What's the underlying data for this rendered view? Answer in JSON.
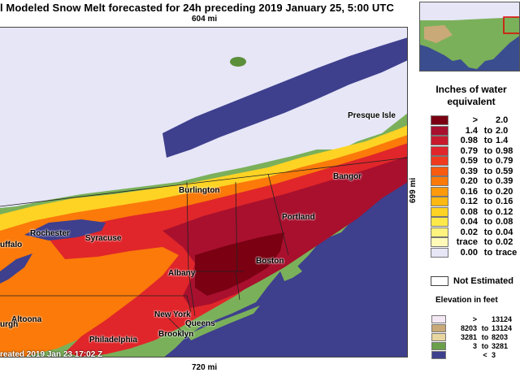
{
  "header": {
    "title": "l Modeled Snow Melt forecasted for 24h preceding 2019 January 25, 5:00 UTC",
    "distance_top": "604 mi",
    "distance_bottom": "720 mi",
    "distance_right": "699 mi",
    "timestamp": "reated 2019 Jan 23 17:02 Z"
  },
  "cities": [
    {
      "name": "Presque Isle"
    },
    {
      "name": "Bangor"
    },
    {
      "name": "Burlington"
    },
    {
      "name": "Portland"
    },
    {
      "name": "Rochester"
    },
    {
      "name": "Syracuse"
    },
    {
      "name": "uffalo"
    },
    {
      "name": "Albany"
    },
    {
      "name": "Boston"
    },
    {
      "name": "Altoona"
    },
    {
      "name": "New York"
    },
    {
      "name": "Queens"
    },
    {
      "name": "Brooklyn"
    },
    {
      "name": "Philadelphia"
    },
    {
      "name": "urgh"
    }
  ],
  "legend": {
    "title_line1": "Inches of water",
    "title_line2": "equivalent",
    "items": [
      {
        "lo": ">",
        "to": "",
        "hi": "2.0",
        "color": "#7a0012"
      },
      {
        "lo": "1.4",
        "to": "to",
        "hi": "2.0",
        "color": "#a8102e"
      },
      {
        "lo": "0.98",
        "to": "to",
        "hi": "1.4",
        "color": "#c81a2c"
      },
      {
        "lo": "0.79",
        "to": "to",
        "hi": "0.98",
        "color": "#e0262a"
      },
      {
        "lo": "0.59",
        "to": "to",
        "hi": "0.79",
        "color": "#f03a1e"
      },
      {
        "lo": "0.39",
        "to": "to",
        "hi": "0.59",
        "color": "#f85a10"
      },
      {
        "lo": "0.20",
        "to": "to",
        "hi": "0.39",
        "color": "#fb7a0a"
      },
      {
        "lo": "0.16",
        "to": "to",
        "hi": "0.20",
        "color": "#fc9a0c"
      },
      {
        "lo": "0.12",
        "to": "to",
        "hi": "0.16",
        "color": "#fdb814"
      },
      {
        "lo": "0.08",
        "to": "to",
        "hi": "0.12",
        "color": "#fed324"
      },
      {
        "lo": "0.04",
        "to": "to",
        "hi": "0.08",
        "color": "#fee94a"
      },
      {
        "lo": "0.02",
        "to": "to",
        "hi": "0.04",
        "color": "#fff27e"
      },
      {
        "lo": "trace",
        "to": "to",
        "hi": "0.02",
        "color": "#fffab8"
      },
      {
        "lo": "0.00",
        "to": "to",
        "hi": "trace",
        "color": "#e6e6f7"
      }
    ],
    "not_estimated": "Not Estimated"
  },
  "elevation": {
    "title": "Elevation in feet",
    "items": [
      {
        "lo": ">",
        "to": "",
        "hi": "13124",
        "color": "#f4e8f4"
      },
      {
        "lo": "8203",
        "to": "to",
        "hi": "13124",
        "color": "#c9a978"
      },
      {
        "lo": "3281",
        "to": "to",
        "hi": "8203",
        "color": "#e7d6a0"
      },
      {
        "lo": "3",
        "to": "to",
        "hi": "3281",
        "color": "#6aa04a"
      },
      {
        "lo": "",
        "to": "<",
        "hi": "3",
        "color": "#3e3f8d"
      }
    ]
  }
}
